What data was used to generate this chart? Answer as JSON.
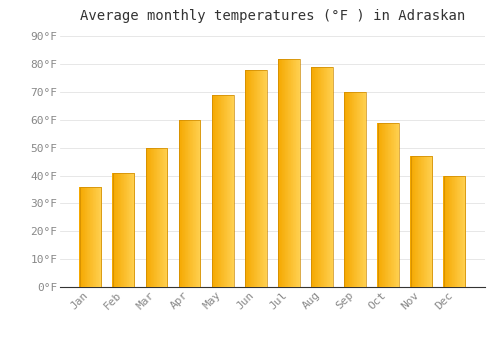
{
  "title": "Average monthly temperatures (°F ) in Adraskan",
  "months": [
    "Jan",
    "Feb",
    "Mar",
    "Apr",
    "May",
    "Jun",
    "Jul",
    "Aug",
    "Sep",
    "Oct",
    "Nov",
    "Dec"
  ],
  "values": [
    36,
    41,
    50,
    60,
    69,
    78,
    82,
    79,
    70,
    59,
    47,
    40
  ],
  "bar_color_left": "#F5A800",
  "bar_color_right": "#FFD050",
  "background_color": "#FFFFFF",
  "grid_color": "#DDDDDD",
  "ylim": [
    0,
    93
  ],
  "yticks": [
    0,
    10,
    20,
    30,
    40,
    50,
    60,
    70,
    80,
    90
  ],
  "ytick_labels": [
    "0°F",
    "10°F",
    "20°F",
    "30°F",
    "40°F",
    "50°F",
    "60°F",
    "70°F",
    "80°F",
    "90°F"
  ],
  "title_fontsize": 10,
  "tick_fontsize": 8,
  "font_family": "monospace",
  "tick_color": "#888888",
  "bar_width": 0.65
}
